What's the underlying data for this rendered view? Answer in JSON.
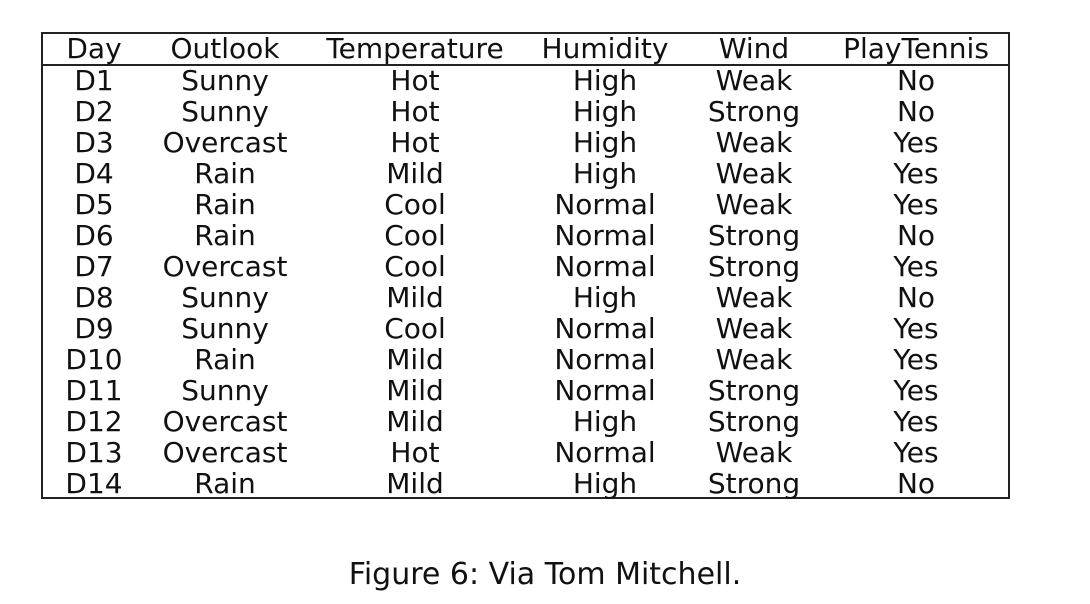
{
  "table": {
    "columns": [
      "Day",
      "Outlook",
      "Temperature",
      "Humidity",
      "Wind",
      "PlayTennis"
    ],
    "rows": [
      [
        "D1",
        "Sunny",
        "Hot",
        "High",
        "Weak",
        "No"
      ],
      [
        "D2",
        "Sunny",
        "Hot",
        "High",
        "Strong",
        "No"
      ],
      [
        "D3",
        "Overcast",
        "Hot",
        "High",
        "Weak",
        "Yes"
      ],
      [
        "D4",
        "Rain",
        "Mild",
        "High",
        "Weak",
        "Yes"
      ],
      [
        "D5",
        "Rain",
        "Cool",
        "Normal",
        "Weak",
        "Yes"
      ],
      [
        "D6",
        "Rain",
        "Cool",
        "Normal",
        "Strong",
        "No"
      ],
      [
        "D7",
        "Overcast",
        "Cool",
        "Normal",
        "Strong",
        "Yes"
      ],
      [
        "D8",
        "Sunny",
        "Mild",
        "High",
        "Weak",
        "No"
      ],
      [
        "D9",
        "Sunny",
        "Cool",
        "Normal",
        "Weak",
        "Yes"
      ],
      [
        "D10",
        "Rain",
        "Mild",
        "Normal",
        "Weak",
        "Yes"
      ],
      [
        "D11",
        "Sunny",
        "Mild",
        "Normal",
        "Strong",
        "Yes"
      ],
      [
        "D12",
        "Overcast",
        "Mild",
        "High",
        "Strong",
        "Yes"
      ],
      [
        "D13",
        "Overcast",
        "Hot",
        "Normal",
        "Weak",
        "Yes"
      ],
      [
        "D14",
        "Rain",
        "Mild",
        "High",
        "Strong",
        "No"
      ]
    ]
  },
  "caption": "Figure 6: Via Tom Mitchell."
}
